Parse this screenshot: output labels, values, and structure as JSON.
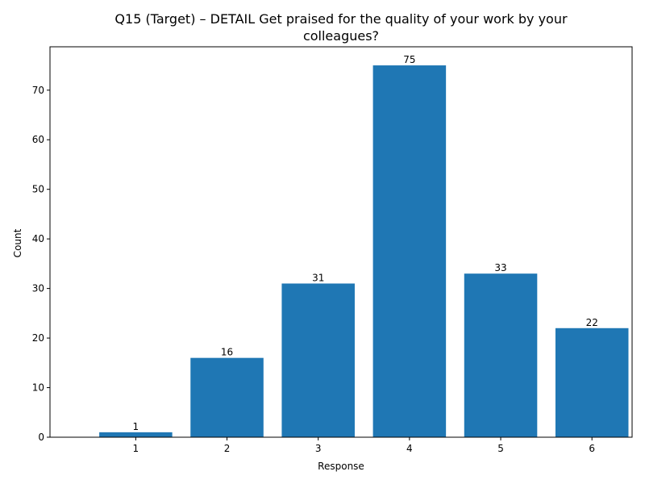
{
  "chart_data": {
    "type": "bar",
    "title": "Q15 (Target) – DETAIL Get praised for the quality of your work by your colleagues?",
    "title_lines": [
      "Q15 (Target) – DETAIL Get praised for the quality of your work by your",
      "colleagues?"
    ],
    "xlabel": "Response",
    "ylabel": "Count",
    "categories": [
      "1",
      "2",
      "3",
      "4",
      "5",
      "6"
    ],
    "values": [
      1,
      16,
      31,
      75,
      33,
      22
    ],
    "ylim": [
      0,
      78.75
    ],
    "yticks": [
      0,
      10,
      20,
      30,
      40,
      50,
      60,
      70
    ],
    "bar_color": "#1f77b4",
    "grid": false,
    "legend": "none"
  }
}
